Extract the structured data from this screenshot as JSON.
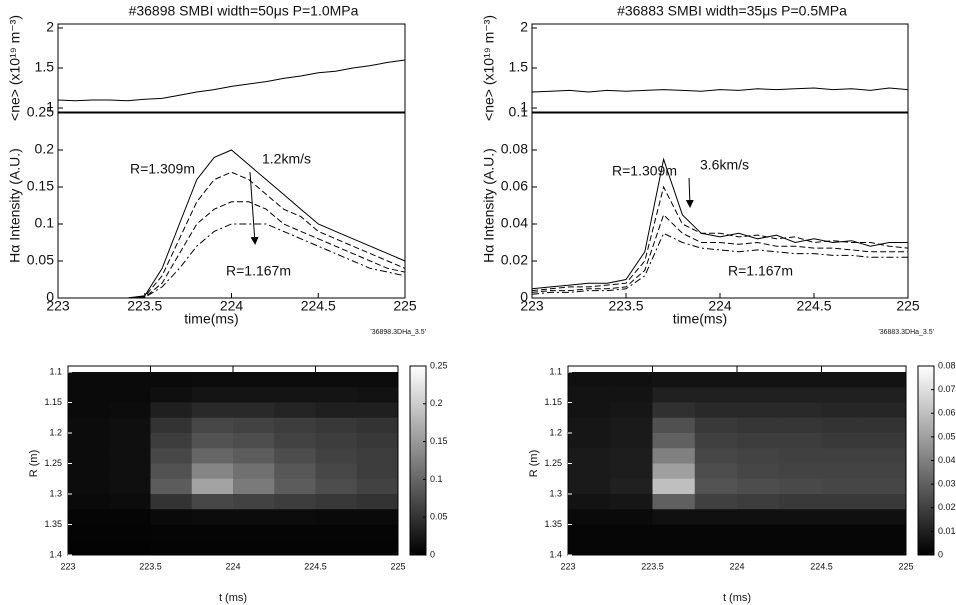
{
  "chart_data": [
    {
      "type": "line",
      "title": "#36898 SMBI width=50μs P=1.0MPa",
      "y_label": "<ne> (x10¹⁹ m⁻³)",
      "x": [
        223,
        223.1,
        223.2,
        223.3,
        223.4,
        223.5,
        223.6,
        223.7,
        223.8,
        223.9,
        224,
        224.1,
        224.2,
        224.3,
        224.4,
        224.5,
        224.6,
        224.7,
        224.8,
        224.9,
        225
      ],
      "values": [
        1.1,
        1.09,
        1.1,
        1.1,
        1.09,
        1.11,
        1.12,
        1.16,
        1.2,
        1.23,
        1.27,
        1.3,
        1.33,
        1.37,
        1.4,
        1.44,
        1.46,
        1.5,
        1.53,
        1.57,
        1.6
      ],
      "color": "#000000",
      "xlim": [
        223,
        225
      ],
      "ylim": [
        0.95,
        2.05
      ],
      "yticks": [
        1,
        1.5,
        2
      ]
    },
    {
      "type": "line",
      "y_label": "Hα Intensity (A.U.)",
      "x_label": "time(ms)",
      "x": [
        223,
        223.1,
        223.2,
        223.3,
        223.4,
        223.5,
        223.6,
        223.7,
        223.8,
        223.9,
        224,
        224.1,
        224.2,
        224.3,
        224.4,
        224.5,
        224.6,
        224.7,
        224.8,
        224.9,
        225
      ],
      "series": [
        {
          "color": "#000000",
          "style": "solid",
          "values": [
            0,
            0,
            0,
            0,
            0,
            0.003,
            0.04,
            0.1,
            0.16,
            0.19,
            0.2,
            0.18,
            0.16,
            0.14,
            0.12,
            0.1,
            0.09,
            0.08,
            0.07,
            0.06,
            0.05
          ]
        },
        {
          "color": "#000000",
          "style": "dashed",
          "values": [
            0,
            0,
            0,
            0,
            0,
            0.002,
            0.03,
            0.08,
            0.13,
            0.16,
            0.17,
            0.16,
            0.14,
            0.12,
            0.11,
            0.09,
            0.08,
            0.07,
            0.06,
            0.05,
            0.04
          ]
        },
        {
          "color": "#000000",
          "style": "dashed",
          "values": [
            0,
            0,
            0,
            0,
            0,
            0.001,
            0.02,
            0.06,
            0.1,
            0.12,
            0.13,
            0.13,
            0.12,
            0.1,
            0.09,
            0.08,
            0.07,
            0.06,
            0.05,
            0.04,
            0.035
          ]
        },
        {
          "color": "#000000",
          "style": "dashdot",
          "values": [
            0,
            0,
            0,
            0,
            0,
            0.001,
            0.015,
            0.04,
            0.07,
            0.09,
            0.1,
            0.1,
            0.1,
            0.09,
            0.08,
            0.07,
            0.06,
            0.05,
            0.04,
            0.035,
            0.03
          ]
        }
      ],
      "annotations": [
        {
          "text": "R=1.309m",
          "color": "#777777"
        },
        {
          "text": "1.2km/s",
          "color": "#000000"
        },
        {
          "text": "R=1.167m",
          "color": "#000000"
        }
      ],
      "xlim": [
        223,
        225
      ],
      "xticks": [
        223,
        223.5,
        224,
        224.5,
        225
      ],
      "ylim": [
        0,
        0.25
      ],
      "yticks": [
        0,
        0.05,
        0.1,
        0.15,
        0.2,
        0.25
      ]
    },
    {
      "type": "heatmap",
      "tag": "'36898.3DHa_3.5'",
      "y_label": "R (m)",
      "x_label": "t (ms)",
      "xbins": [
        223,
        223.25,
        223.5,
        223.75,
        224,
        224.25,
        224.5,
        224.75,
        225
      ],
      "ybins": [
        1.1,
        1.125,
        1.15,
        1.175,
        1.2,
        1.225,
        1.25,
        1.275,
        1.3,
        1.325,
        1.35,
        1.375,
        1.4
      ],
      "values": [
        [
          0.01,
          0.01,
          0.01,
          0.012,
          0.012,
          0.012,
          0.012,
          0.012
        ],
        [
          0.01,
          0.01,
          0.015,
          0.02,
          0.02,
          0.02,
          0.02,
          0.018
        ],
        [
          0.01,
          0.012,
          0.03,
          0.04,
          0.04,
          0.035,
          0.03,
          0.03
        ],
        [
          0.012,
          0.015,
          0.05,
          0.07,
          0.065,
          0.06,
          0.055,
          0.05
        ],
        [
          0.012,
          0.015,
          0.06,
          0.08,
          0.075,
          0.065,
          0.06,
          0.055
        ],
        [
          0.012,
          0.015,
          0.07,
          0.1,
          0.09,
          0.075,
          0.065,
          0.06
        ],
        [
          0.012,
          0.015,
          0.08,
          0.13,
          0.11,
          0.085,
          0.07,
          0.06
        ],
        [
          0.012,
          0.015,
          0.09,
          0.16,
          0.12,
          0.09,
          0.075,
          0.065
        ],
        [
          0.01,
          0.012,
          0.05,
          0.07,
          0.065,
          0.06,
          0.055,
          0.05
        ],
        [
          0.005,
          0.005,
          0.01,
          0.012,
          0.012,
          0.012,
          0.01,
          0.01
        ],
        [
          0.004,
          0.004,
          0.005,
          0.005,
          0.005,
          0.005,
          0.005,
          0.005
        ],
        [
          0.003,
          0.003,
          0.004,
          0.004,
          0.004,
          0.004,
          0.004,
          0.004
        ]
      ],
      "xlim": [
        223,
        225
      ],
      "xticks": [
        223,
        223.5,
        224,
        224.5,
        225
      ],
      "ylim": [
        1.4,
        1.1
      ],
      "yticks": [
        1.1,
        1.15,
        1.2,
        1.25,
        1.3,
        1.35,
        1.4
      ],
      "clim": [
        0,
        0.25
      ],
      "cticks": [
        0,
        0.05,
        0.1,
        0.15,
        0.2,
        0.25
      ]
    },
    {
      "type": "line",
      "title": "#36883 SMBI width=35μs P=0.5MPa",
      "y_label": "<ne> (x10¹⁹ m⁻³)",
      "x": [
        223,
        223.1,
        223.2,
        223.3,
        223.4,
        223.5,
        223.6,
        223.7,
        223.8,
        223.9,
        224,
        224.1,
        224.2,
        224.3,
        224.4,
        224.5,
        224.6,
        224.7,
        224.8,
        224.9,
        225
      ],
      "values": [
        1.2,
        1.21,
        1.22,
        1.2,
        1.22,
        1.21,
        1.22,
        1.23,
        1.22,
        1.21,
        1.23,
        1.22,
        1.24,
        1.23,
        1.24,
        1.25,
        1.23,
        1.24,
        1.22,
        1.25,
        1.23
      ],
      "color": "#000000",
      "xlim": [
        223,
        225
      ],
      "ylim": [
        0.95,
        2.05
      ],
      "yticks": [
        1,
        1.5,
        2
      ]
    },
    {
      "type": "line",
      "y_label": "Hα Intensity (A.U.)",
      "x_label": "time(ms)",
      "x": [
        223,
        223.1,
        223.2,
        223.3,
        223.4,
        223.5,
        223.6,
        223.7,
        223.8,
        223.9,
        224,
        224.1,
        224.2,
        224.3,
        224.4,
        224.5,
        224.6,
        224.7,
        224.8,
        224.9,
        225
      ],
      "series": [
        {
          "color": "#000000",
          "style": "solid",
          "values": [
            0.005,
            0.006,
            0.007,
            0.008,
            0.008,
            0.01,
            0.025,
            0.075,
            0.045,
            0.035,
            0.033,
            0.035,
            0.032,
            0.034,
            0.03,
            0.032,
            0.03,
            0.031,
            0.028,
            0.03,
            0.03
          ]
        },
        {
          "color": "#000000",
          "style": "dashed",
          "values": [
            0.004,
            0.005,
            0.006,
            0.006,
            0.007,
            0.008,
            0.02,
            0.06,
            0.04,
            0.035,
            0.035,
            0.033,
            0.034,
            0.032,
            0.033,
            0.03,
            0.031,
            0.03,
            0.03,
            0.028,
            0.027
          ]
        },
        {
          "color": "#000000",
          "style": "dashed",
          "values": [
            0.003,
            0.004,
            0.004,
            0.005,
            0.005,
            0.006,
            0.015,
            0.045,
            0.035,
            0.03,
            0.03,
            0.029,
            0.03,
            0.028,
            0.028,
            0.027,
            0.027,
            0.026,
            0.025,
            0.025,
            0.025
          ]
        },
        {
          "color": "#000000",
          "style": "dashdot",
          "values": [
            0.002,
            0.003,
            0.003,
            0.004,
            0.004,
            0.005,
            0.012,
            0.035,
            0.03,
            0.027,
            0.026,
            0.025,
            0.026,
            0.025,
            0.024,
            0.024,
            0.023,
            0.023,
            0.022,
            0.022,
            0.022
          ]
        }
      ],
      "annotations": [
        {
          "text": "R=1.309m",
          "color": "#777777"
        },
        {
          "text": "3.6km/s",
          "color": "#000000"
        },
        {
          "text": "R=1.167m",
          "color": "#000000"
        }
      ],
      "xlim": [
        223,
        225
      ],
      "xticks": [
        223,
        223.5,
        224,
        224.5,
        225
      ],
      "ylim": [
        0,
        0.1
      ],
      "yticks": [
        0,
        0.02,
        0.04,
        0.06,
        0.08,
        0.1
      ]
    },
    {
      "type": "heatmap",
      "tag": "'36883.3DHa_3.5'",
      "y_label": "R (m)",
      "x_label": "t (ms)",
      "xbins": [
        223,
        223.25,
        223.5,
        223.75,
        224,
        224.25,
        224.5,
        224.75,
        225
      ],
      "ybins": [
        1.1,
        1.125,
        1.15,
        1.175,
        1.2,
        1.225,
        1.25,
        1.275,
        1.3,
        1.325,
        1.35,
        1.375,
        1.4
      ],
      "values": [
        [
          0.005,
          0.005,
          0.006,
          0.006,
          0.006,
          0.006,
          0.006,
          0.006
        ],
        [
          0.006,
          0.006,
          0.01,
          0.01,
          0.01,
          0.01,
          0.01,
          0.01
        ],
        [
          0.006,
          0.007,
          0.015,
          0.013,
          0.013,
          0.013,
          0.012,
          0.012
        ],
        [
          0.007,
          0.008,
          0.025,
          0.018,
          0.017,
          0.017,
          0.016,
          0.016
        ],
        [
          0.007,
          0.008,
          0.03,
          0.02,
          0.019,
          0.019,
          0.018,
          0.018
        ],
        [
          0.008,
          0.009,
          0.04,
          0.022,
          0.021,
          0.02,
          0.02,
          0.02
        ],
        [
          0.008,
          0.009,
          0.05,
          0.024,
          0.022,
          0.021,
          0.021,
          0.021
        ],
        [
          0.008,
          0.01,
          0.06,
          0.026,
          0.024,
          0.023,
          0.022,
          0.022
        ],
        [
          0.006,
          0.007,
          0.03,
          0.02,
          0.019,
          0.018,
          0.018,
          0.018
        ],
        [
          0.003,
          0.003,
          0.005,
          0.005,
          0.005,
          0.005,
          0.005,
          0.005
        ],
        [
          0.002,
          0.002,
          0.002,
          0.002,
          0.002,
          0.002,
          0.002,
          0.002
        ],
        [
          0.002,
          0.002,
          0.002,
          0.002,
          0.002,
          0.002,
          0.002,
          0.002
        ]
      ],
      "xlim": [
        223,
        225
      ],
      "xticks": [
        223,
        223.5,
        224,
        224.5,
        225
      ],
      "ylim": [
        1.4,
        1.1
      ],
      "yticks": [
        1.1,
        1.15,
        1.2,
        1.25,
        1.3,
        1.35,
        1.4
      ],
      "clim": [
        0,
        0.08
      ],
      "cticks": [
        0,
        0.01,
        0.02,
        0.03,
        0.04,
        0.05,
        0.06,
        0.07,
        0.08
      ]
    }
  ]
}
